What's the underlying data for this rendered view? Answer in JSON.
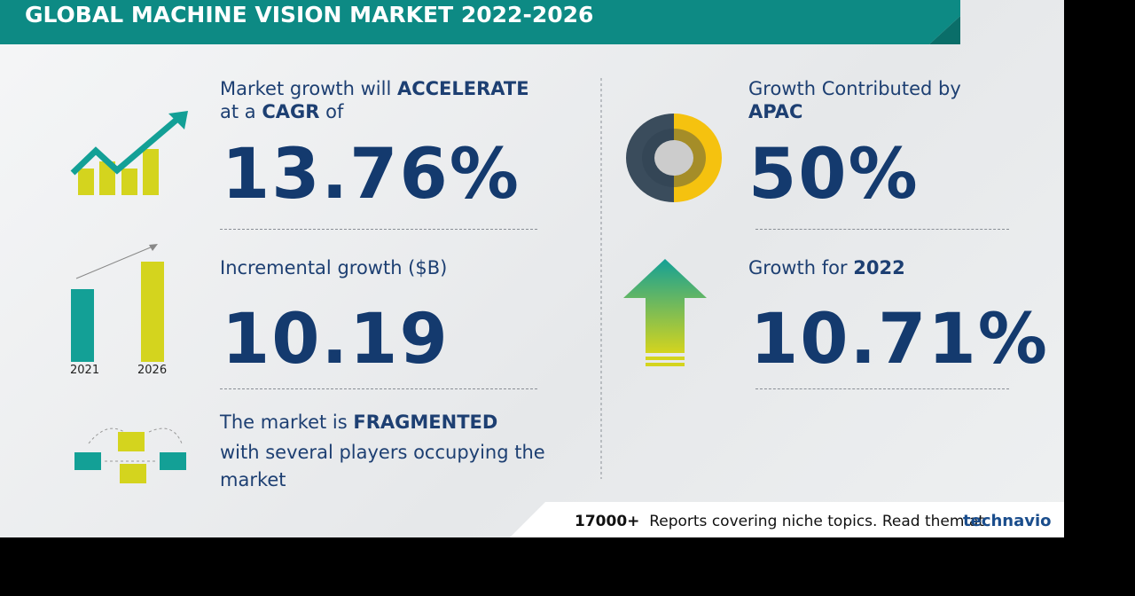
{
  "header": {
    "title": "GLOBAL MACHINE VISION MARKET 2022-2026"
  },
  "growth": {
    "line1": "Market growth will",
    "line1_bold": "ACCELERATE",
    "line2a": "at a",
    "line2_bold": "CAGR",
    "line2b": "of",
    "value": "13.76%"
  },
  "incremental": {
    "label": "Incremental growth ($B)",
    "value": "10.19",
    "year_start": "2021",
    "year_end": "2026"
  },
  "fragmented": {
    "line1": "The market is",
    "line1_bold": "FRAGMENTED",
    "line2": "with several players occupying the market"
  },
  "region": {
    "label": "Growth Contributed by",
    "region": "APAC",
    "value": "50%"
  },
  "year_growth": {
    "label": "Growth for",
    "year": "2022",
    "value": "10.71%"
  },
  "footer": {
    "count": "17000+",
    "text": "Reports covering niche topics. Read them at",
    "brand": "technavio"
  }
}
